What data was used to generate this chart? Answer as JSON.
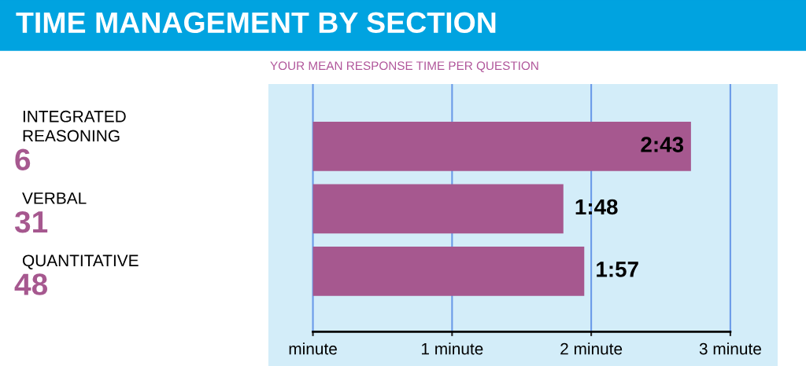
{
  "chart_data": {
    "type": "bar",
    "orientation": "horizontal",
    "title": "TIME MANAGEMENT BY SECTION",
    "subtitle": "YOUR MEAN RESPONSE TIME PER QUESTION",
    "categories": [
      "INTEGRATED\nREASONING",
      "VERBAL",
      "QUANTITATIVE"
    ],
    "values": [
      2.717,
      1.8,
      1.95
    ],
    "value_labels": [
      "2:43",
      "1:48",
      "1:57"
    ],
    "color": "#a6588f",
    "annotations": [
      "6",
      "31",
      "48"
    ],
    "xlim": [
      -0.32,
      3.34
    ],
    "xticks": [
      {
        "value": 0,
        "label": "minute"
      },
      {
        "value": 1,
        "label": "1 minute"
      },
      {
        "value": 2,
        "label": "2 minute"
      },
      {
        "value": 3,
        "label": "3 minute"
      }
    ],
    "grid": "x"
  }
}
